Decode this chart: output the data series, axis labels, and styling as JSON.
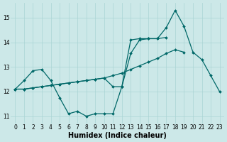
{
  "xlabel": "Humidex (Indice chaleur)",
  "bg_color": "#cce8e8",
  "line_color": "#006868",
  "xlim": [
    -0.5,
    23.5
  ],
  "ylim": [
    10.7,
    15.6
  ],
  "xticks": [
    0,
    1,
    2,
    3,
    4,
    5,
    6,
    7,
    8,
    9,
    10,
    11,
    12,
    13,
    14,
    15,
    16,
    17,
    18,
    19,
    20,
    21,
    22,
    23
  ],
  "yticks": [
    11,
    12,
    13,
    14,
    15
  ],
  "line1_y": [
    12.1,
    12.45,
    12.85,
    12.9,
    12.45,
    11.75,
    11.1,
    11.2,
    11.0,
    11.1,
    11.1,
    11.1,
    12.2,
    13.55,
    14.1,
    14.15,
    14.15,
    14.2,
    null,
    null,
    null,
    null,
    null,
    null
  ],
  "line2_y": [
    12.1,
    12.1,
    12.15,
    12.2,
    12.25,
    12.3,
    12.35,
    12.4,
    12.45,
    12.5,
    12.55,
    12.65,
    12.75,
    12.9,
    13.05,
    13.2,
    13.35,
    13.55,
    13.7,
    13.6,
    null,
    null,
    null,
    null
  ],
  "line3_y": [
    12.1,
    12.1,
    12.15,
    12.2,
    12.25,
    12.3,
    12.35,
    12.4,
    12.45,
    12.5,
    12.55,
    12.2,
    12.2,
    14.1,
    14.15,
    14.15,
    14.15,
    14.6,
    15.3,
    14.65,
    13.6,
    13.3,
    12.65,
    12.0
  ],
  "figsize": [
    3.2,
    2.0
  ],
  "dpi": 100,
  "marker": "D",
  "markersize": 2.0,
  "linewidth": 0.9,
  "xlabel_fontsize": 7,
  "tick_fontsize": 5.5,
  "grid_color": "#aad4d4",
  "grid_lw": 0.5
}
